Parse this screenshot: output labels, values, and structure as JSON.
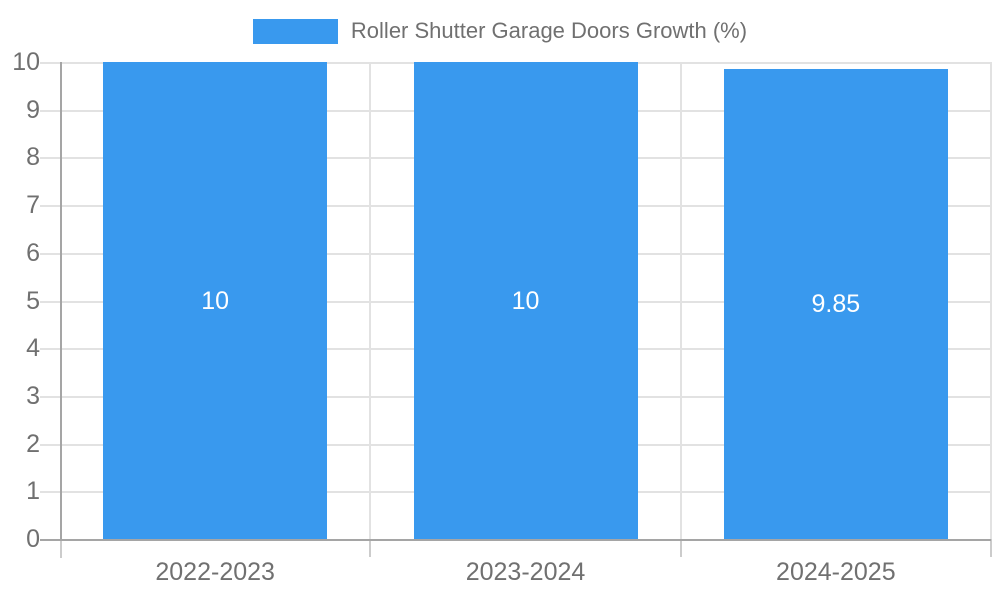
{
  "legend": {
    "label": "Roller Shutter Garage Doors Growth (%)"
  },
  "chart_data": {
    "type": "bar",
    "title": "Roller Shutter Garage Doors Growth (%)",
    "categories": [
      "2022-2023",
      "2023-2024",
      "2024-2025"
    ],
    "values": [
      10,
      10,
      9.85
    ],
    "bar_value_labels": [
      "10",
      "10",
      "9.85"
    ],
    "xlabel": "",
    "ylabel": "",
    "ylim": [
      0,
      10
    ],
    "yticks": [
      0,
      1,
      2,
      3,
      4,
      5,
      6,
      7,
      8,
      9,
      10
    ],
    "grid": true,
    "legend_position": "top-center",
    "colors": {
      "bar": "#3999EE",
      "bar_label_text": "#FFFFFF",
      "axis_text": "#707070",
      "axis_line": "#A5A5A5",
      "gridline": "#E2E2E2",
      "tick_tail": "#CCCCCC",
      "background": "#FFFFFF"
    }
  }
}
